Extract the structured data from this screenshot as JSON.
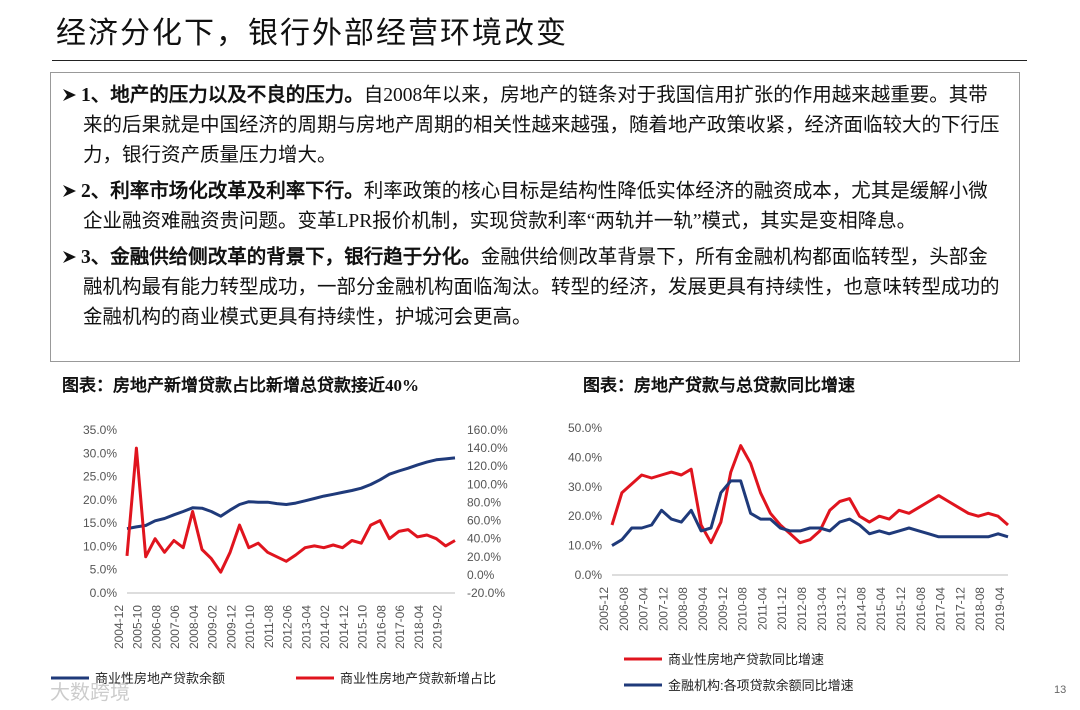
{
  "title": "经济分化下，银行外部经营环境改变",
  "bullets": [
    {
      "lead": "1、地产的压力以及不良的压力。",
      "text": "自2008年以来，房地产的链条对于我国信用扩张的作用越来越重要。其带来的后果就是中国经济的周期与房地产周期的相关性越来越强，随着地产政策收紧，经济面临较大的下行压力，银行资产质量压力增大。"
    },
    {
      "lead": "2、利率市场化改革及利率下行。",
      "text": "利率政策的核心目标是结构性降低实体经济的融资成本，尤其是缓解小微企业融资难融资贵问题。变革LPR报价机制，实现贷款利率“两轨并一轨”模式，其实是变相降息。"
    },
    {
      "lead": "3、金融供给侧改革的背景下，银行趋于分化。",
      "text": "金融供给侧改革背景下，所有金融机构都面临转型，头部金融机构最有能力转型成功，一部分金融机构面临淘汰。转型的经济，发展更具有持续性，也意味转型成功的金融机构的商业模式更具有持续性，护城河会更高。"
    }
  ],
  "watermark": "大数跨境",
  "page_number": "13",
  "chart_data": [
    {
      "type": "line",
      "title": "图表：房地产新增贷款占比新增总贷款接近40%",
      "grid": false,
      "categories": [
        "2004-12",
        null,
        "2005-10",
        null,
        "2006-08",
        null,
        "2007-06",
        null,
        "2008-04",
        null,
        "2009-02",
        null,
        "2009-12",
        null,
        "2010-10",
        null,
        "2011-08",
        null,
        "2012-06",
        null,
        "2013-04",
        null,
        "2014-02",
        null,
        "2014-12",
        null,
        "2015-10",
        null,
        "2016-08",
        null,
        "2017-06",
        null,
        "2018-04",
        null,
        "2019-02",
        null
      ],
      "ylim": [
        0,
        35
      ],
      "yticks": [
        {
          "value": 0,
          "label": "0.0%"
        },
        {
          "value": 5,
          "label": "5.0%"
        },
        {
          "value": 10,
          "label": "10.0%"
        },
        {
          "value": 15,
          "label": "15.0%"
        },
        {
          "value": 20,
          "label": "20.0%"
        },
        {
          "value": 25,
          "label": "25.0%"
        },
        {
          "value": 30,
          "label": "30.0%"
        },
        {
          "value": 35,
          "label": "35.0%"
        }
      ],
      "y2lim": [
        -20,
        160
      ],
      "y2ticks": [
        {
          "value": -20,
          "label": "-20.0%"
        },
        {
          "value": 0,
          "label": "0.0%"
        },
        {
          "value": 20,
          "label": "20.0%"
        },
        {
          "value": 40,
          "label": "40.0%"
        },
        {
          "value": 60,
          "label": "60.0%"
        },
        {
          "value": 80,
          "label": "80.0%"
        },
        {
          "value": 100,
          "label": "100.0%"
        },
        {
          "value": 120,
          "label": "120.0%"
        },
        {
          "value": 140,
          "label": "140.0%"
        },
        {
          "value": 160,
          "label": "160.0%"
        }
      ],
      "series": [
        {
          "name": "商业性房地产贷款余额",
          "color": "#1f3a7a",
          "axis": "y",
          "values": [
            13.8,
            14.2,
            14.5,
            15.5,
            16.0,
            16.8,
            17.5,
            18.3,
            18.2,
            17.5,
            16.5,
            17.8,
            19.0,
            19.6,
            19.5,
            19.5,
            19.2,
            19.0,
            19.3,
            19.8,
            20.3,
            20.8,
            21.2,
            21.6,
            22.0,
            22.5,
            23.3,
            24.3,
            25.5,
            26.2,
            26.8,
            27.5,
            28.1,
            28.6,
            28.8,
            29.0
          ]
        },
        {
          "name": "商业性房地产贷款新增占比",
          "color": "#e0141e",
          "axis": "y2",
          "values": [
            21,
            140,
            20,
            40,
            25,
            38,
            30,
            70,
            28,
            18,
            3,
            25,
            55,
            30,
            35,
            25,
            20,
            15,
            22,
            30,
            32,
            30,
            33,
            30,
            38,
            35,
            55,
            60,
            40,
            48,
            50,
            42,
            44,
            40,
            32,
            38
          ]
        }
      ]
    },
    {
      "type": "line",
      "title": "图表：房地产贷款与总贷款同比增速",
      "grid": false,
      "categories": [
        "2005-12",
        null,
        "2006-08",
        null,
        "2007-04",
        null,
        "2007-12",
        null,
        "2008-08",
        null,
        "2009-04",
        null,
        "2009-12",
        null,
        "2010-08",
        null,
        "2011-04",
        null,
        "2011-12",
        null,
        "2012-08",
        null,
        "2013-04",
        null,
        "2013-12",
        null,
        "2014-08",
        null,
        "2015-04",
        null,
        "2015-12",
        null,
        "2016-08",
        null,
        "2017-04",
        null,
        "2017-12",
        null,
        "2018-08",
        null,
        "2019-04"
      ],
      "ylim": [
        0,
        50
      ],
      "yticks": [
        {
          "value": 0,
          "label": "0.0%"
        },
        {
          "value": 10,
          "label": "10.0%"
        },
        {
          "value": 20,
          "label": "20.0%"
        },
        {
          "value": 30,
          "label": "30.0%"
        },
        {
          "value": 40,
          "label": "40.0%"
        },
        {
          "value": 50,
          "label": "50.0%"
        }
      ],
      "series": [
        {
          "name": "商业性房地产贷款同比增速",
          "color": "#e0141e",
          "values": [
            17,
            28,
            31,
            34,
            33,
            34,
            35,
            34,
            36,
            17,
            11,
            18,
            35,
            44,
            38,
            28,
            21,
            17,
            14,
            11,
            12,
            15,
            22,
            25,
            26,
            20,
            18,
            20,
            19,
            22,
            21,
            23,
            25,
            27,
            25,
            23,
            21,
            20,
            21,
            20,
            17
          ]
        },
        {
          "name": "金融机构:各项贷款余额同比增速",
          "color": "#1f3a7a",
          "values": [
            10,
            12,
            16,
            16,
            17,
            22,
            19,
            18,
            22,
            15,
            16,
            28,
            32,
            32,
            21,
            19,
            19,
            16,
            15,
            15,
            16,
            16,
            15,
            18,
            19,
            17,
            14,
            15,
            14,
            15,
            16,
            15,
            14,
            13,
            13,
            13,
            13,
            13,
            13,
            14,
            13
          ]
        }
      ]
    }
  ]
}
